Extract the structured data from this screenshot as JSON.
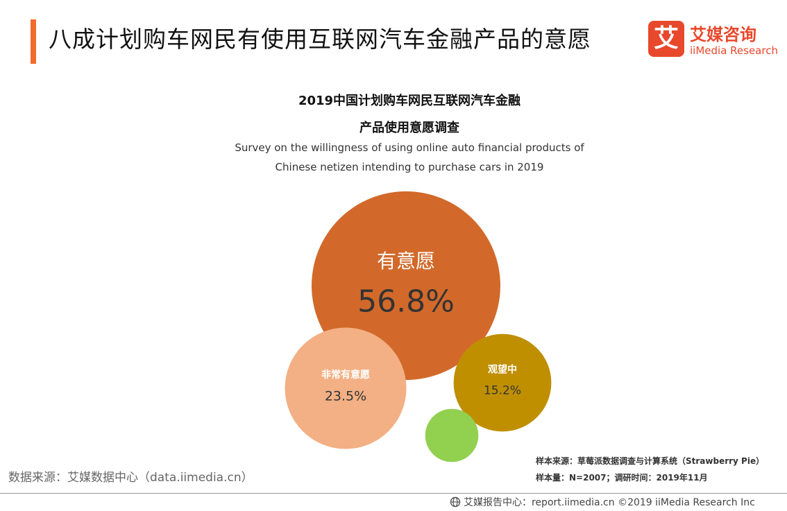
{
  "header": {
    "title": "八成计划购车网民有使用互联网汽车金融产品的意愿",
    "accent_color": "#f26b2b"
  },
  "logo": {
    "mark": "艾",
    "name_cn": "艾媒咨询",
    "name_en": "iiMedia Research",
    "color": "#e8482c"
  },
  "chart_data": {
    "type": "bubble",
    "title_line1": "2019中国计划购车网民互联网汽车金融",
    "title_line2": "产品使用意愿调查",
    "subtitle_line1": "Survey on the willingness of using online auto financial products of",
    "subtitle_line2": "Chinese netizen intending to purchase cars in 2019",
    "series": [
      {
        "label": "有意愿",
        "value": 56.8,
        "display": "56.8%",
        "color": "#d2692a"
      },
      {
        "label": "非常有意愿",
        "value": 23.5,
        "display": "23.5%",
        "color": "#f3b084"
      },
      {
        "label": "观望中",
        "value": 15.2,
        "display": "15.2%",
        "color": "#bf8f00"
      },
      {
        "label": "",
        "value": 4.5,
        "display": "",
        "color": "#92d050"
      }
    ]
  },
  "source": {
    "left": "数据来源：艾媒数据中心（data.iimedia.cn）",
    "sample_source": "样本来源：草莓派数据调查与计算系统（Strawberry Pie）",
    "sample_info": "样本量：N=2007；调研时间：2019年11月"
  },
  "footer": {
    "text": "艾媒报告中心：report.iimedia.cn  ©2019  iiMedia Research  Inc"
  }
}
